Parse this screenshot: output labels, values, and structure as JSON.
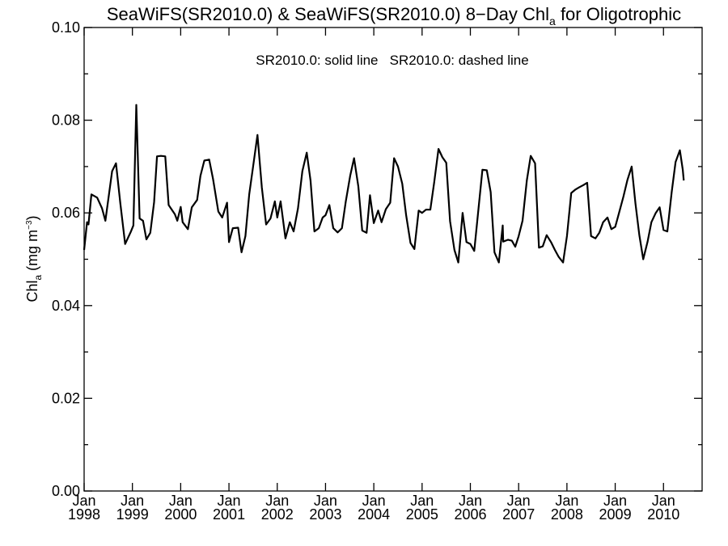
{
  "chart_data": {
    "type": "line",
    "title": {
      "main": "SeaWiFS(SR2010.0) & SeaWiFS(SR2010.0) 8−Day Chl",
      "sub": "a",
      "tail": " for Oligotrophic"
    },
    "ylabel": {
      "main": "Chl",
      "sub": "a",
      "units": " (mg m",
      "sup": "−3",
      "close": ")"
    },
    "annotation": "SR2010.0: solid line   SR2010.0: dashed line",
    "xlim": [
      1998.0,
      2010.8
    ],
    "ylim": [
      0.0,
      0.1
    ],
    "y_ticks": [
      "0.00",
      "0.02",
      "0.04",
      "0.06",
      "0.08",
      "0.10"
    ],
    "x_ticks": [
      {
        "month": "Jan",
        "year": "1998"
      },
      {
        "month": "Jan",
        "year": "1999"
      },
      {
        "month": "Jan",
        "year": "2000"
      },
      {
        "month": "Jan",
        "year": "2001"
      },
      {
        "month": "Jan",
        "year": "2002"
      },
      {
        "month": "Jan",
        "year": "2003"
      },
      {
        "month": "Jan",
        "year": "2004"
      },
      {
        "month": "Jan",
        "year": "2005"
      },
      {
        "month": "Jan",
        "year": "2006"
      },
      {
        "month": "Jan",
        "year": "2007"
      },
      {
        "month": "Jan",
        "year": "2008"
      },
      {
        "month": "Jan",
        "year": "2009"
      },
      {
        "month": "Jan",
        "year": "2010"
      }
    ],
    "series": [
      {
        "style": "solid",
        "color": "#000000",
        "points": [
          [
            1998.0,
            0.052
          ],
          [
            1998.06,
            0.058
          ],
          [
            1998.09,
            0.0575
          ],
          [
            1998.15,
            0.064
          ],
          [
            1998.27,
            0.0633
          ],
          [
            1998.37,
            0.061
          ],
          [
            1998.44,
            0.0583
          ],
          [
            1998.58,
            0.069
          ],
          [
            1998.66,
            0.0707
          ],
          [
            1998.75,
            0.062
          ],
          [
            1998.85,
            0.0533
          ],
          [
            1998.97,
            0.056
          ],
          [
            1999.02,
            0.0573
          ],
          [
            1999.08,
            0.0833
          ],
          [
            1999.15,
            0.0588
          ],
          [
            1999.22,
            0.0583
          ],
          [
            1999.29,
            0.0543
          ],
          [
            1999.37,
            0.0557
          ],
          [
            1999.45,
            0.0623
          ],
          [
            1999.51,
            0.0722
          ],
          [
            1999.59,
            0.0723
          ],
          [
            1999.68,
            0.0722
          ],
          [
            1999.75,
            0.0617
          ],
          [
            1999.88,
            0.0597
          ],
          [
            1999.93,
            0.0583
          ],
          [
            2000.0,
            0.0613
          ],
          [
            2000.04,
            0.058
          ],
          [
            2000.15,
            0.0565
          ],
          [
            2000.23,
            0.0612
          ],
          [
            2000.34,
            0.0628
          ],
          [
            2000.41,
            0.068
          ],
          [
            2000.49,
            0.0713
          ],
          [
            2000.59,
            0.0715
          ],
          [
            2000.67,
            0.0673
          ],
          [
            2000.78,
            0.0603
          ],
          [
            2000.86,
            0.059
          ],
          [
            2000.96,
            0.0622
          ],
          [
            2001.0,
            0.0537
          ],
          [
            2001.08,
            0.0567
          ],
          [
            2001.19,
            0.0568
          ],
          [
            2001.26,
            0.0515
          ],
          [
            2001.34,
            0.055
          ],
          [
            2001.42,
            0.064
          ],
          [
            2001.5,
            0.07
          ],
          [
            2001.59,
            0.0768
          ],
          [
            2001.68,
            0.0655
          ],
          [
            2001.77,
            0.0575
          ],
          [
            2001.86,
            0.0588
          ],
          [
            2001.95,
            0.0625
          ],
          [
            2002.0,
            0.059
          ],
          [
            2002.07,
            0.0625
          ],
          [
            2002.17,
            0.0545
          ],
          [
            2002.26,
            0.058
          ],
          [
            2002.34,
            0.056
          ],
          [
            2002.43,
            0.061
          ],
          [
            2002.52,
            0.069
          ],
          [
            2002.61,
            0.073
          ],
          [
            2002.69,
            0.067
          ],
          [
            2002.77,
            0.056
          ],
          [
            2002.86,
            0.0567
          ],
          [
            2002.94,
            0.059
          ],
          [
            2003.0,
            0.0595
          ],
          [
            2003.08,
            0.0617
          ],
          [
            2003.16,
            0.0567
          ],
          [
            2003.25,
            0.0558
          ],
          [
            2003.34,
            0.0567
          ],
          [
            2003.42,
            0.0625
          ],
          [
            2003.51,
            0.068
          ],
          [
            2003.59,
            0.0718
          ],
          [
            2003.68,
            0.0657
          ],
          [
            2003.76,
            0.0562
          ],
          [
            2003.85,
            0.0557
          ],
          [
            2003.92,
            0.0638
          ],
          [
            2004.0,
            0.0578
          ],
          [
            2004.09,
            0.0605
          ],
          [
            2004.16,
            0.058
          ],
          [
            2004.25,
            0.0608
          ],
          [
            2004.34,
            0.0622
          ],
          [
            2004.42,
            0.0718
          ],
          [
            2004.5,
            0.07
          ],
          [
            2004.59,
            0.0663
          ],
          [
            2004.67,
            0.0595
          ],
          [
            2004.76,
            0.0535
          ],
          [
            2004.84,
            0.0522
          ],
          [
            2004.93,
            0.0605
          ],
          [
            2005.0,
            0.06
          ],
          [
            2005.08,
            0.0607
          ],
          [
            2005.17,
            0.0607
          ],
          [
            2005.25,
            0.0665
          ],
          [
            2005.34,
            0.0738
          ],
          [
            2005.42,
            0.072
          ],
          [
            2005.5,
            0.0708
          ],
          [
            2005.58,
            0.0582
          ],
          [
            2005.67,
            0.052
          ],
          [
            2005.75,
            0.0493
          ],
          [
            2005.84,
            0.06
          ],
          [
            2005.92,
            0.0537
          ],
          [
            2006.0,
            0.0533
          ],
          [
            2006.08,
            0.0518
          ],
          [
            2006.17,
            0.061
          ],
          [
            2006.25,
            0.0693
          ],
          [
            2006.34,
            0.0692
          ],
          [
            2006.42,
            0.0645
          ],
          [
            2006.5,
            0.0515
          ],
          [
            2006.59,
            0.0493
          ],
          [
            2006.67,
            0.0573
          ],
          [
            2006.68,
            0.0538
          ],
          [
            2006.78,
            0.0542
          ],
          [
            2006.86,
            0.054
          ],
          [
            2006.93,
            0.0527
          ],
          [
            2007.0,
            0.055
          ],
          [
            2007.08,
            0.0583
          ],
          [
            2007.17,
            0.067
          ],
          [
            2007.25,
            0.0723
          ],
          [
            2007.34,
            0.0707
          ],
          [
            2007.42,
            0.0525
          ],
          [
            2007.5,
            0.0528
          ],
          [
            2007.58,
            0.0552
          ],
          [
            2007.67,
            0.0537
          ],
          [
            2007.75,
            0.052
          ],
          [
            2007.83,
            0.0505
          ],
          [
            2007.92,
            0.0493
          ],
          [
            2008.0,
            0.055
          ],
          [
            2008.09,
            0.0643
          ],
          [
            2008.17,
            0.065
          ],
          [
            2008.25,
            0.0655
          ],
          [
            2008.34,
            0.066
          ],
          [
            2008.42,
            0.0665
          ],
          [
            2008.5,
            0.055
          ],
          [
            2008.59,
            0.0545
          ],
          [
            2008.67,
            0.0557
          ],
          [
            2008.75,
            0.058
          ],
          [
            2008.84,
            0.059
          ],
          [
            2008.92,
            0.0565
          ],
          [
            2009.0,
            0.057
          ],
          [
            2009.08,
            0.06
          ],
          [
            2009.17,
            0.0635
          ],
          [
            2009.25,
            0.067
          ],
          [
            2009.34,
            0.07
          ],
          [
            2009.42,
            0.062
          ],
          [
            2009.5,
            0.0552
          ],
          [
            2009.58,
            0.05
          ],
          [
            2009.67,
            0.0538
          ],
          [
            2009.75,
            0.058
          ],
          [
            2009.84,
            0.06
          ],
          [
            2009.92,
            0.0612
          ],
          [
            2010.0,
            0.0563
          ],
          [
            2010.08,
            0.056
          ],
          [
            2010.17,
            0.0645
          ],
          [
            2010.25,
            0.071
          ],
          [
            2010.34,
            0.0735
          ],
          [
            2010.4,
            0.0693
          ],
          [
            2010.42,
            0.067
          ]
        ]
      }
    ]
  }
}
